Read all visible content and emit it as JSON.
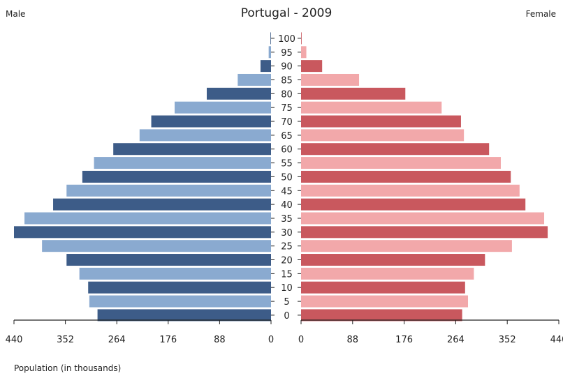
{
  "chart_data": {
    "type": "bar",
    "title": "Portugal - 2009",
    "left_label": "Male",
    "right_label": "Female",
    "xlabel": "Population (in thousands)",
    "xlim": [
      0,
      440
    ],
    "x_ticks": [
      440,
      352,
      264,
      176,
      88,
      0
    ],
    "x_ticks_right": [
      0,
      88,
      176,
      264,
      352,
      440
    ],
    "categories": [
      "100",
      "95",
      "90",
      "85",
      "80",
      "75",
      "70",
      "65",
      "60",
      "55",
      "50",
      "45",
      "40",
      "35",
      "30",
      "25",
      "20",
      "15",
      "10",
      "5",
      "0"
    ],
    "series": [
      {
        "name": "Male",
        "values": [
          1,
          4,
          18,
          57,
          110,
          165,
          205,
          225,
          270,
          303,
          323,
          350,
          373,
          422,
          440,
          392,
          350,
          328,
          313,
          311,
          297
        ],
        "colors": [
          "#3d5c88",
          "#8aaad0"
        ]
      },
      {
        "name": "Female",
        "values": [
          1,
          9,
          36,
          99,
          178,
          240,
          273,
          278,
          321,
          341,
          358,
          373,
          383,
          415,
          421,
          360,
          314,
          295,
          280,
          285,
          275
        ],
        "colors": [
          "#c9585e",
          "#f2a8aa"
        ]
      }
    ],
    "grid": false,
    "legend": "none"
  }
}
